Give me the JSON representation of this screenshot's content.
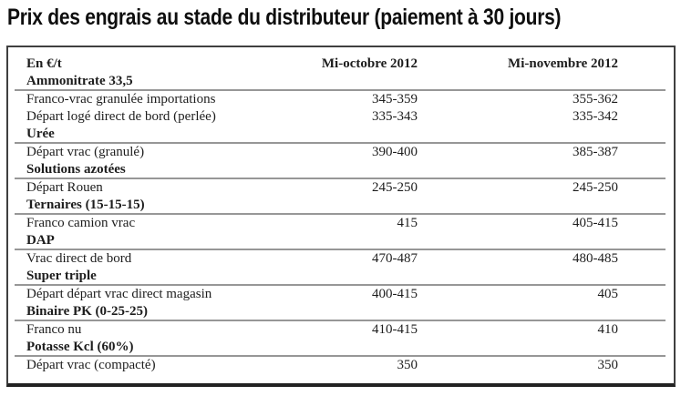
{
  "title": "Prix des engrais au stade du distributeur (paiement à 30 jours)",
  "table": {
    "columns": [
      "En €/t",
      "Mi-octobre 2012",
      "Mi-novembre 2012"
    ],
    "rows": [
      {
        "type": "category",
        "label": "Ammonitrate 33,5"
      },
      {
        "type": "data",
        "label": "Franco-vrac granulée importations",
        "oct": "345-359",
        "nov": "355-362"
      },
      {
        "type": "data",
        "label": "Départ logé direct de bord (perlée)",
        "oct": "335-343",
        "nov": "335-342"
      },
      {
        "type": "category",
        "label": "Urée"
      },
      {
        "type": "data",
        "label": "Départ vrac (granulé)",
        "oct": "390-400",
        "nov": "385-387"
      },
      {
        "type": "category",
        "label": "Solutions azotées"
      },
      {
        "type": "data",
        "label": "Départ Rouen",
        "oct": "245-250",
        "nov": "245-250"
      },
      {
        "type": "category",
        "label": "Ternaires (15-15-15)"
      },
      {
        "type": "data",
        "label": "Franco camion vrac",
        "oct": "415",
        "nov": "405-415"
      },
      {
        "type": "category",
        "label": "DAP"
      },
      {
        "type": "data",
        "label": "Vrac direct de bord",
        "oct": "470-487",
        "nov": "480-485"
      },
      {
        "type": "category",
        "label": "Super triple"
      },
      {
        "type": "data",
        "label": "Départ départ vrac direct magasin",
        "oct": "400-415",
        "nov": "405"
      },
      {
        "type": "category",
        "label": "Binaire PK (0-25-25)"
      },
      {
        "type": "data",
        "label": "Franco nu",
        "oct": "410-415",
        "nov": "410"
      },
      {
        "type": "category",
        "label": "Potasse Kcl (60%)"
      },
      {
        "type": "data",
        "label": "Départ vrac (compacté)",
        "oct": "350",
        "nov": "350"
      }
    ]
  },
  "colors": {
    "text": "#1d1d1d",
    "title_text": "#0e0e0e",
    "outer_border": "#3f3f3f",
    "category_rule": "#979797",
    "bottom_bar": "#222222",
    "background": "#ffffff"
  }
}
